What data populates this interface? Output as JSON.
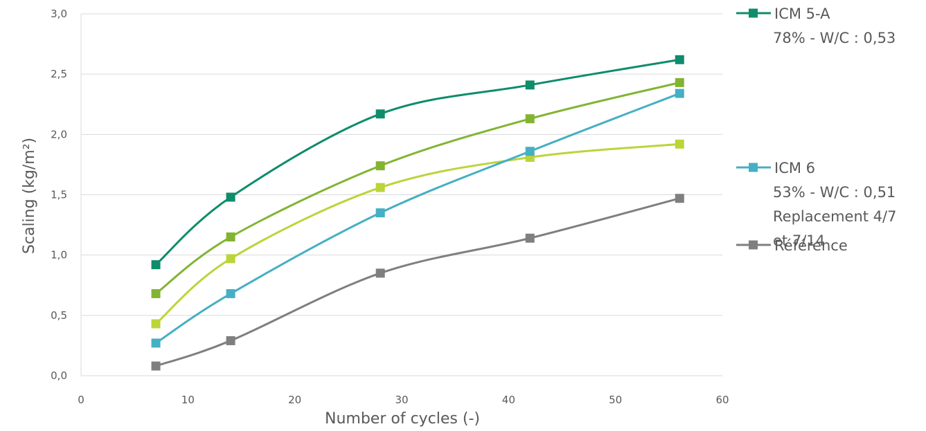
{
  "chart_data": {
    "type": "line",
    "xlabel": "Number of cycles (-)",
    "ylabel": "Scaling  (kg/m²)",
    "xlim": [
      0,
      60
    ],
    "ylim": [
      0,
      3
    ],
    "x_ticks": [
      "0",
      "10",
      "20",
      "30",
      "40",
      "50",
      "60"
    ],
    "y_ticks": [
      "0,0",
      "0,5",
      "1,0",
      "1,5",
      "2,0",
      "2,5",
      "3,0"
    ],
    "grid": "horizontal",
    "legend_position": "right",
    "x": [
      7,
      14,
      28,
      42,
      56
    ],
    "series": [
      {
        "name": "ICM 5-A",
        "legend_lines": [
          "ICM 5-A",
          "78% - W/C : 0,53"
        ],
        "color": "#0E8C6B",
        "values": [
          0.92,
          1.48,
          2.17,
          2.41,
          2.62
        ],
        "in_legend": true
      },
      {
        "name": "",
        "legend_lines": [],
        "color": "#82B432",
        "values": [
          0.68,
          1.15,
          1.74,
          2.13,
          2.43
        ],
        "in_legend": false
      },
      {
        "name": "",
        "legend_lines": [],
        "color": "#BCD43A",
        "values": [
          0.43,
          0.97,
          1.56,
          1.81,
          1.92
        ],
        "in_legend": false
      },
      {
        "name": "ICM 6",
        "legend_lines": [
          "ICM 6",
          "53% - W/C : 0,51",
          "Replacement 4/7",
          "et 7/14"
        ],
        "color": "#45AFC4",
        "values": [
          0.27,
          0.68,
          1.35,
          1.86,
          2.34
        ],
        "in_legend": true
      },
      {
        "name": "Référence",
        "legend_lines": [
          "Référence"
        ],
        "color": "#7F7F7F",
        "values": [
          0.08,
          0.29,
          0.85,
          1.14,
          1.47
        ],
        "in_legend": true
      }
    ]
  }
}
